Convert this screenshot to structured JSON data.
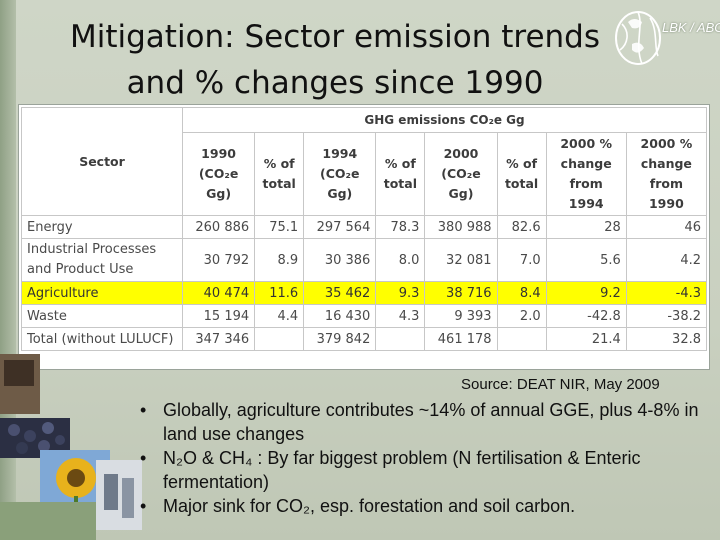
{
  "title": {
    "line1": "Mitigation: Sector emission trends",
    "line2": "and % changes since 1990"
  },
  "logo": {
    "text": "LBK / ABC"
  },
  "table": {
    "sector_header": "Sector",
    "group_header": "GHG emissions CO₂e Gg",
    "columns": [
      "1990 (CO₂e Gg)",
      "% of total",
      "1994 (CO₂e Gg)",
      "% of total",
      "2000 (CO₂e Gg)",
      "% of total",
      "2000 % change from 1994",
      "2000 % change from 1990"
    ],
    "rows": [
      {
        "sector": "Energy",
        "cells": [
          "260 886",
          "75.1",
          "297 564",
          "78.3",
          "380 988",
          "82.6",
          "28",
          "46"
        ]
      },
      {
        "sector": "Industrial Processes and Product Use",
        "cells": [
          "30 792",
          "8.9",
          "30 386",
          "8.0",
          "32 081",
          "7.0",
          "5.6",
          "4.2"
        ]
      },
      {
        "sector": "Agriculture",
        "cells": [
          "40 474",
          "11.6",
          "35 462",
          "9.3",
          "38 716",
          "8.4",
          "9.2",
          "-4.3"
        ]
      },
      {
        "sector": "Waste",
        "cells": [
          "15 194",
          "4.4",
          "16 430",
          "4.3",
          "9 393",
          "2.0",
          "-42.8",
          "-38.2"
        ]
      },
      {
        "sector": "Total (without LULUCF)",
        "cells": [
          "347 346",
          "",
          "379 842",
          "",
          "461 178",
          "",
          "21.4",
          "32.8"
        ]
      }
    ]
  },
  "source": "Source: DEAT NIR, May 2009",
  "bullets": [
    "Globally, agriculture contributes ~14% of annual GGE, plus 4-8% in land use changes",
    "N₂O & CH₄ : By far biggest problem (N fertilisation & Enteric fermentation)",
    "Major sink for CO₂, esp. forestation and soil carbon."
  ],
  "colors": {
    "highlight": "#ffff00",
    "header_text": "#3c3c3c",
    "logo": "#ffffff"
  }
}
